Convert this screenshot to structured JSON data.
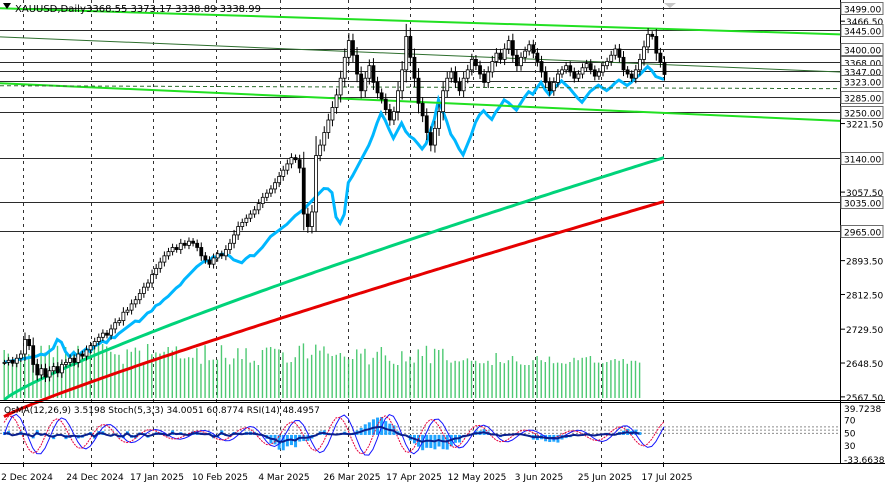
{
  "header": {
    "symbol": "XAUUSD,Daily",
    "ohlc": "3368.55 3373.17 3338.89 3338.99"
  },
  "chart_data": {
    "type": "candlestick",
    "title": "XAUUSD,Daily",
    "x_labels": [
      "2 Dec 2024",
      "24 Dec 2024",
      "17 Jan 2025",
      "10 Feb 2025",
      "4 Mar 2025",
      "26 Mar 2025",
      "17 Apr 2025",
      "12 May 2025",
      "3 Jun 2025",
      "25 Jun 2025",
      "17 Jul 2025"
    ],
    "price_axis": {
      "ticks": [
        "3466.50",
        "3221.50",
        "3057.50",
        "2893.50",
        "2812.50",
        "2729.50",
        "2648.50",
        "2567.50"
      ],
      "level_labels": [
        "3499.00",
        "3445.00",
        "3400.00",
        "3368.00",
        "3347.00",
        "3323.00",
        "3285.00",
        "3250.00",
        "3140.00",
        "3035.00",
        "2965.00"
      ],
      "ylim": [
        2560,
        3510
      ]
    },
    "key_levels": [
      3499,
      3445,
      3400,
      3368,
      3347,
      3323,
      3285,
      3250,
      3140,
      3035,
      2965
    ],
    "price_series": [
      2650,
      2655,
      2648,
      2660,
      2670,
      2705,
      2690,
      2645,
      2620,
      2635,
      2615,
      2630,
      2640,
      2625,
      2645,
      2650,
      2660,
      2650,
      2670,
      2665,
      2680,
      2690,
      2700,
      2710,
      2720,
      2715,
      2730,
      2745,
      2750,
      2770,
      2775,
      2790,
      2800,
      2815,
      2830,
      2840,
      2860,
      2875,
      2890,
      2905,
      2915,
      2925,
      2920,
      2935,
      2930,
      2940,
      2935,
      2925,
      2905,
      2895,
      2885,
      2900,
      2910,
      2905,
      2920,
      2935,
      2955,
      2975,
      2985,
      2995,
      3005,
      3015,
      3030,
      3045,
      3055,
      3065,
      3080,
      3095,
      3110,
      3125,
      3140,
      3135,
      3115,
      3005,
      2975,
      3010,
      3145,
      3170,
      3200,
      3230,
      3260,
      3290,
      3330,
      3380,
      3420,
      3385,
      3340,
      3300,
      3330,
      3360,
      3320,
      3295,
      3280,
      3255,
      3230,
      3250,
      3300,
      3350,
      3430,
      3380,
      3330,
      3270,
      3240,
      3200,
      3170,
      3210,
      3250,
      3300,
      3330,
      3345,
      3320,
      3300,
      3330,
      3350,
      3375,
      3360,
      3340,
      3320,
      3345,
      3370,
      3390,
      3375,
      3400,
      3420,
      3385,
      3360,
      3380,
      3395,
      3410,
      3390,
      3370,
      3345,
      3320,
      3300,
      3320,
      3340,
      3350,
      3360,
      3345,
      3330,
      3340,
      3355,
      3365,
      3350,
      3335,
      3345,
      3360,
      3370,
      3385,
      3400,
      3380,
      3350,
      3340,
      3330,
      3350,
      3375,
      3405,
      3435,
      3430,
      3390,
      3368,
      3339
    ],
    "moving_averages": [
      {
        "color": "#00b7ff",
        "start": 2650,
        "end": 3323
      },
      {
        "color": "#00d37a",
        "start": 2560,
        "end": 3140
      },
      {
        "color": "#e60000",
        "start": 2520,
        "end": 3035
      }
    ],
    "trend_lines": {
      "channel_upper": [
        3495,
        3435
      ],
      "channel_lower": [
        3318,
        3228
      ],
      "dark_upper": [
        3429,
        3345
      ],
      "dark_lower": [
        3312,
        3305
      ]
    },
    "volume_series": [
      80,
      74,
      60,
      66,
      65,
      86,
      73,
      70,
      58,
      87,
      76,
      88,
      68,
      87,
      60,
      85,
      68,
      79,
      87,
      72,
      72,
      87,
      91,
      88,
      90,
      86,
      77,
      73,
      72,
      57,
      81,
      77,
      84,
      79,
      58,
      90,
      73,
      76,
      74,
      77,
      85,
      79,
      86,
      66,
      66,
      68,
      67,
      83,
      57,
      88,
      63,
      64,
      64,
      88,
      67,
      56,
      66,
      83,
      65,
      83,
      59,
      62,
      55,
      80,
      84,
      85,
      82,
      81,
      76,
      59,
      60,
      68,
      87,
      91,
      66,
      72,
      89,
      79,
      86,
      74,
      70,
      72,
      75,
      69,
      65,
      65,
      81,
      74,
      82,
      56,
      67,
      77,
      85,
      71,
      62,
      57,
      55,
      78,
      61,
      69,
      59,
      81,
      70,
      87,
      58,
      82,
      80,
      82,
      63,
      59,
      62,
      61,
      63,
      66,
      62,
      62,
      58,
      58,
      62,
      55,
      75,
      60,
      58,
      63,
      70,
      61,
      56,
      55,
      55,
      63,
      70,
      63,
      60,
      69,
      58,
      59,
      58,
      57,
      60,
      67,
      63,
      67,
      68,
      70,
      59,
      59,
      58,
      60,
      63,
      65,
      62,
      65,
      57,
      62,
      62,
      59
    ],
    "indicator": {
      "label": "OsMA(12,26,9) 3.5198  Stoch(5,3,3) 34.0051 60.8774  RSI(14) 48.4957",
      "osma": 3.5198,
      "stoch_k": 34.0051,
      "stoch_d": 60.8774,
      "rsi": 48.4957,
      "ticks": [
        "39.7238",
        "70",
        "50",
        "30",
        "-33.6638"
      ],
      "ylim": [
        -33.6638,
        39.7238
      ]
    },
    "osma_series": [
      3.6,
      4.8,
      -0.9,
      0.9,
      4.5,
      2.2,
      0.2,
      -4.3,
      5.9,
      0.3,
      2.6,
      -2.5,
      -5.2,
      0.2,
      0.1,
      -5.2,
      -3.8,
      -2.2,
      -4.3,
      -3.4,
      0.3,
      3.7,
      -4.7,
      4.9,
      4.7,
      0.5,
      -2.2,
      1.4,
      -3.3,
      -4.0,
      4.5,
      -3.6,
      -4.2,
      3.1,
      2.1,
      -3.4,
      -0.8,
      3.4,
      3.2,
      2.3,
      -1.6,
      5.6,
      2.2,
      3.4,
      0.8,
      -0.2,
      4.6,
      4.7,
      2.9,
      2.0,
      2.7,
      -4.1,
      -3.4,
      5.6,
      0.1,
      -2.4,
      3.7,
      2.8,
      1.8,
      3.9,
      4.1,
      3.8,
      1.3,
      -0.3,
      -4.9,
      -10.5,
      -11.8,
      -18.3,
      -19.1,
      -14.2,
      -12.6,
      -15.3,
      -8.2,
      -7.6,
      -7.4,
      -4.5,
      -1.6,
      4.5,
      5.7,
      2.4,
      1.9,
      0.8,
      2.2,
      4.0,
      2.4,
      2.5,
      5.4,
      8.8,
      13.2,
      15.7,
      19.4,
      21.6,
      22.3,
      17.2,
      14.0,
      11.9,
      4.5,
      -0.3,
      -0.9,
      -6.9,
      -10.5,
      -14.6,
      -19.0,
      -16.0,
      -16.3,
      -17.9,
      -14.4,
      -17.7,
      -18.2,
      -14.0,
      -9.8,
      -9.4,
      -3.1,
      -1.7,
      1.2,
      4.7,
      5.1,
      7.3,
      4.3,
      1.3,
      1.3,
      -2.7,
      -0.2,
      0.4,
      1.2,
      2.2,
      2.1,
      -0.3,
      -2.4,
      -5.8,
      -6.4,
      -5.4,
      -7.9,
      -8.8,
      -8.4,
      -9.5,
      -5.7,
      -3.9,
      -2.8,
      0.0,
      -1.4,
      -0.3,
      1.7,
      -0.2,
      -1.6,
      0.5,
      1.5,
      2.6,
      0.8,
      0.5,
      3.8,
      5.2,
      7.6,
      5.0,
      6.6,
      3.5
    ]
  }
}
